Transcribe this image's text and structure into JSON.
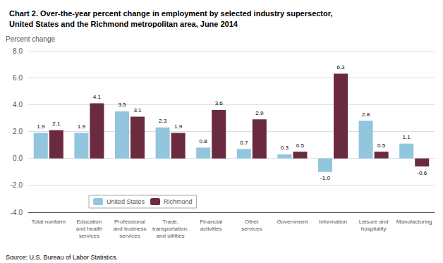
{
  "chart_data": {
    "type": "bar",
    "title": "Chart 2. Over-the-year percent change in employment by selected industry supersector,\nUnited States and the Richmond metropolitan area, June 2014",
    "ylabel": "Percent change",
    "annotations": [
      "Source: U.S. Bureau of Labor Statistics."
    ],
    "categories": [
      "Total nonfarm",
      "Education\nand health\nservices",
      "Professional\nand business\nservices",
      "Trade,\ntransportation,\nand utilities",
      "Financial\nactivities",
      "Other\nservices",
      "Government",
      "Information",
      "Leisure and\nhospitality",
      "Manufacturing"
    ],
    "series": [
      {
        "name": "United States",
        "color": "#92C5DE",
        "values": [
          1.9,
          1.9,
          3.5,
          2.3,
          0.8,
          0.7,
          0.3,
          -1.0,
          2.8,
          1.1
        ],
        "value_labels": [
          "1.9",
          "1.9",
          "3.5",
          "2.3",
          "0.8",
          "0.7",
          "0.3",
          "-1.0",
          "2.8",
          "1.1"
        ]
      },
      {
        "name": "Richmond",
        "color": "#6B2B3E",
        "values": [
          2.1,
          4.1,
          3.1,
          1.9,
          3.6,
          2.9,
          0.5,
          6.3,
          0.5,
          -0.6
        ],
        "value_labels": [
          "2.1",
          "4.1",
          "3.1",
          "1.9",
          "3.6",
          "2.9",
          "0.5",
          "6.3",
          "0.5",
          "-0.6"
        ]
      }
    ],
    "ylim": [
      -4.0,
      8.0
    ],
    "yticks": [
      {
        "value": -4.0,
        "label": "-4.0"
      },
      {
        "value": -2.0,
        "label": "-2.0"
      },
      {
        "value": 0.0,
        "label": "0.0"
      },
      {
        "value": 2.0,
        "label": "2.0"
      },
      {
        "value": 4.0,
        "label": "4.0"
      },
      {
        "value": 6.0,
        "label": "6.0"
      },
      {
        "value": 8.0,
        "label": "8.0"
      }
    ],
    "grid": true,
    "legend": "lower left",
    "data_labels": true
  }
}
